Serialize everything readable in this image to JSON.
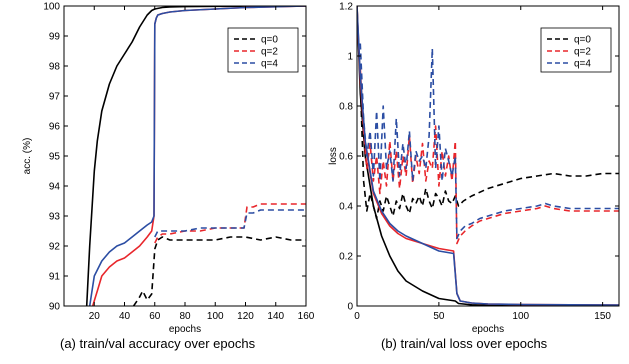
{
  "chart_data": [
    {
      "type": "line",
      "caption": "(a) train/val accuracy over epochs",
      "xlabel": "epochs",
      "ylabel": "acc. (%)",
      "xlim": [
        0,
        160
      ],
      "ylim": [
        90,
        100
      ],
      "xticks": [
        20,
        40,
        60,
        80,
        100,
        120,
        140,
        160
      ],
      "yticks": [
        90,
        91,
        92,
        93,
        94,
        95,
        96,
        97,
        98,
        99,
        100
      ],
      "legend_position": "top-right",
      "series": [
        {
          "name": "q=0",
          "role": "train",
          "color": "#000000",
          "dashed": false,
          "x": [
            15,
            17,
            20,
            22,
            25,
            30,
            35,
            40,
            45,
            50,
            55,
            58,
            60,
            65,
            70,
            80,
            100,
            160
          ],
          "y": [
            90.0,
            92.0,
            94.5,
            95.5,
            96.5,
            97.4,
            98.0,
            98.4,
            98.8,
            99.3,
            99.7,
            99.85,
            99.9,
            99.95,
            99.97,
            99.98,
            99.99,
            100.0
          ]
        },
        {
          "name": "q=0",
          "role": "val",
          "color": "#000000",
          "dashed": true,
          "x": [
            46,
            50,
            52,
            55,
            58,
            60,
            62,
            65,
            70,
            80,
            90,
            100,
            110,
            120,
            130,
            140,
            150,
            160
          ],
          "y": [
            90.0,
            90.3,
            90.5,
            90.2,
            90.4,
            91.9,
            92.2,
            92.3,
            92.2,
            92.2,
            92.2,
            92.2,
            92.3,
            92.3,
            92.2,
            92.3,
            92.2,
            92.2
          ]
        },
        {
          "name": "q=2",
          "role": "train",
          "color": "#e8262b",
          "dashed": false,
          "x": [
            19,
            22,
            25,
            30,
            35,
            40,
            45,
            50,
            55,
            58,
            59.5,
            60,
            61,
            62,
            65,
            70,
            80,
            100,
            120,
            160
          ],
          "y": [
            90.0,
            90.5,
            91.0,
            91.3,
            91.5,
            91.6,
            91.8,
            92.0,
            92.3,
            92.5,
            93.0,
            99.4,
            99.6,
            99.7,
            99.75,
            99.8,
            99.85,
            99.9,
            99.95,
            100.0
          ]
        },
        {
          "name": "q=2",
          "role": "val",
          "color": "#e8262b",
          "dashed": true,
          "x": [
            60,
            62,
            65,
            70,
            80,
            90,
            100,
            110,
            119,
            121,
            125,
            130,
            140,
            150,
            160
          ],
          "y": [
            92.1,
            92.3,
            92.4,
            92.4,
            92.5,
            92.5,
            92.6,
            92.6,
            92.6,
            93.3,
            93.3,
            93.4,
            93.4,
            93.4,
            93.4
          ]
        },
        {
          "name": "q=4",
          "role": "train",
          "color": "#2b4da3",
          "dashed": false,
          "x": [
            17,
            20,
            25,
            30,
            35,
            40,
            45,
            50,
            55,
            58,
            59.5,
            60,
            61,
            62,
            65,
            70,
            80,
            100,
            120,
            160
          ],
          "y": [
            90.0,
            91.0,
            91.5,
            91.8,
            92.0,
            92.1,
            92.3,
            92.5,
            92.7,
            92.8,
            93.0,
            99.4,
            99.6,
            99.7,
            99.75,
            99.8,
            99.85,
            99.9,
            99.95,
            100.0
          ]
        },
        {
          "name": "q=4",
          "role": "val",
          "color": "#2b4da3",
          "dashed": true,
          "x": [
            60,
            62,
            65,
            70,
            80,
            90,
            100,
            110,
            119,
            121,
            125,
            130,
            140,
            150,
            160
          ],
          "y": [
            92.3,
            92.5,
            92.5,
            92.5,
            92.5,
            92.6,
            92.6,
            92.6,
            92.6,
            93.1,
            93.1,
            93.2,
            93.2,
            93.2,
            93.2
          ]
        }
      ]
    },
    {
      "type": "line",
      "caption": "(b) train/val loss over epochs",
      "xlabel": "epochs",
      "ylabel": "loss",
      "xlim": [
        0,
        160
      ],
      "ylim": [
        0,
        1.2
      ],
      "xticks": [
        0,
        50,
        100,
        150
      ],
      "yticks": [
        0,
        0.2,
        0.4,
        0.6,
        0.8,
        1,
        1.2
      ],
      "legend_position": "top-right",
      "series": [
        {
          "name": "q=0",
          "role": "train",
          "color": "#000000",
          "dashed": false,
          "x": [
            0,
            2,
            5,
            10,
            15,
            20,
            25,
            30,
            40,
            50,
            60,
            62,
            70,
            80,
            100,
            160
          ],
          "y": [
            1.2,
            0.85,
            0.6,
            0.4,
            0.28,
            0.2,
            0.14,
            0.1,
            0.06,
            0.03,
            0.02,
            0.01,
            0.005,
            0.003,
            0.002,
            0.0
          ]
        },
        {
          "name": "q=0",
          "role": "val",
          "color": "#000000",
          "dashed": true,
          "x": [
            2,
            4,
            6,
            8,
            10,
            12,
            14,
            16,
            18,
            20,
            22,
            24,
            26,
            28,
            30,
            32,
            34,
            36,
            38,
            40,
            42,
            44,
            46,
            48,
            50,
            52,
            54,
            56,
            58,
            60,
            62,
            65,
            70,
            80,
            90,
            100,
            110,
            120,
            130,
            140,
            150,
            160
          ],
          "y": [
            0.9,
            0.5,
            0.38,
            0.45,
            0.4,
            0.35,
            0.42,
            0.38,
            0.44,
            0.4,
            0.36,
            0.42,
            0.39,
            0.45,
            0.4,
            0.37,
            0.43,
            0.41,
            0.44,
            0.4,
            0.47,
            0.42,
            0.39,
            0.45,
            0.43,
            0.4,
            0.46,
            0.42,
            0.41,
            0.44,
            0.4,
            0.42,
            0.44,
            0.47,
            0.49,
            0.51,
            0.52,
            0.53,
            0.52,
            0.52,
            0.53,
            0.53
          ]
        },
        {
          "name": "q=2",
          "role": "train",
          "color": "#e8262b",
          "dashed": false,
          "x": [
            0,
            2,
            5,
            10,
            15,
            20,
            25,
            30,
            40,
            50,
            59,
            61,
            63,
            70,
            80,
            100,
            160
          ],
          "y": [
            1.2,
            0.9,
            0.65,
            0.45,
            0.37,
            0.32,
            0.29,
            0.27,
            0.25,
            0.23,
            0.22,
            0.05,
            0.02,
            0.012,
            0.008,
            0.006,
            0.004
          ]
        },
        {
          "name": "q=2",
          "role": "val",
          "color": "#e8262b",
          "dashed": true,
          "x": [
            2,
            4,
            6,
            8,
            10,
            12,
            14,
            16,
            18,
            20,
            22,
            24,
            26,
            28,
            30,
            32,
            34,
            36,
            38,
            40,
            42,
            44,
            46,
            48,
            50,
            52,
            54,
            56,
            58,
            60,
            61,
            63,
            66,
            70,
            75,
            80,
            90,
            100,
            110,
            115,
            120,
            130,
            140,
            150,
            160
          ],
          "y": [
            0.95,
            0.7,
            0.55,
            0.65,
            0.5,
            0.6,
            0.45,
            0.58,
            0.48,
            0.66,
            0.5,
            0.62,
            0.47,
            0.6,
            0.52,
            0.68,
            0.49,
            0.6,
            0.53,
            0.65,
            0.5,
            0.58,
            0.55,
            0.72,
            0.48,
            0.62,
            0.52,
            0.6,
            0.5,
            0.66,
            0.25,
            0.28,
            0.3,
            0.32,
            0.34,
            0.35,
            0.37,
            0.38,
            0.39,
            0.4,
            0.39,
            0.38,
            0.38,
            0.38,
            0.38
          ]
        },
        {
          "name": "q=4",
          "role": "train",
          "color": "#2b4da3",
          "dashed": false,
          "x": [
            0,
            2,
            5,
            10,
            15,
            20,
            25,
            30,
            40,
            50,
            59,
            61,
            63,
            70,
            80,
            100,
            160
          ],
          "y": [
            1.2,
            0.92,
            0.66,
            0.46,
            0.38,
            0.33,
            0.3,
            0.28,
            0.25,
            0.22,
            0.21,
            0.05,
            0.02,
            0.012,
            0.008,
            0.006,
            0.004
          ]
        },
        {
          "name": "q=4",
          "role": "val",
          "color": "#2b4da3",
          "dashed": true,
          "x": [
            2,
            4,
            6,
            8,
            10,
            12,
            14,
            16,
            18,
            20,
            22,
            24,
            26,
            28,
            30,
            32,
            34,
            36,
            38,
            40,
            42,
            44,
            46,
            48,
            50,
            52,
            54,
            56,
            58,
            60,
            61,
            63,
            66,
            70,
            75,
            80,
            90,
            100,
            110,
            115,
            120,
            130,
            140,
            150,
            160
          ],
          "y": [
            1.05,
            0.75,
            0.6,
            0.7,
            0.52,
            0.78,
            0.5,
            0.8,
            0.55,
            0.62,
            0.5,
            0.75,
            0.52,
            0.65,
            0.55,
            0.7,
            0.5,
            0.62,
            0.58,
            0.6,
            0.55,
            0.68,
            1.03,
            0.55,
            0.72,
            0.5,
            0.63,
            0.58,
            0.52,
            0.6,
            0.27,
            0.3,
            0.32,
            0.33,
            0.35,
            0.36,
            0.38,
            0.39,
            0.4,
            0.41,
            0.4,
            0.39,
            0.39,
            0.39,
            0.39
          ]
        }
      ]
    }
  ]
}
